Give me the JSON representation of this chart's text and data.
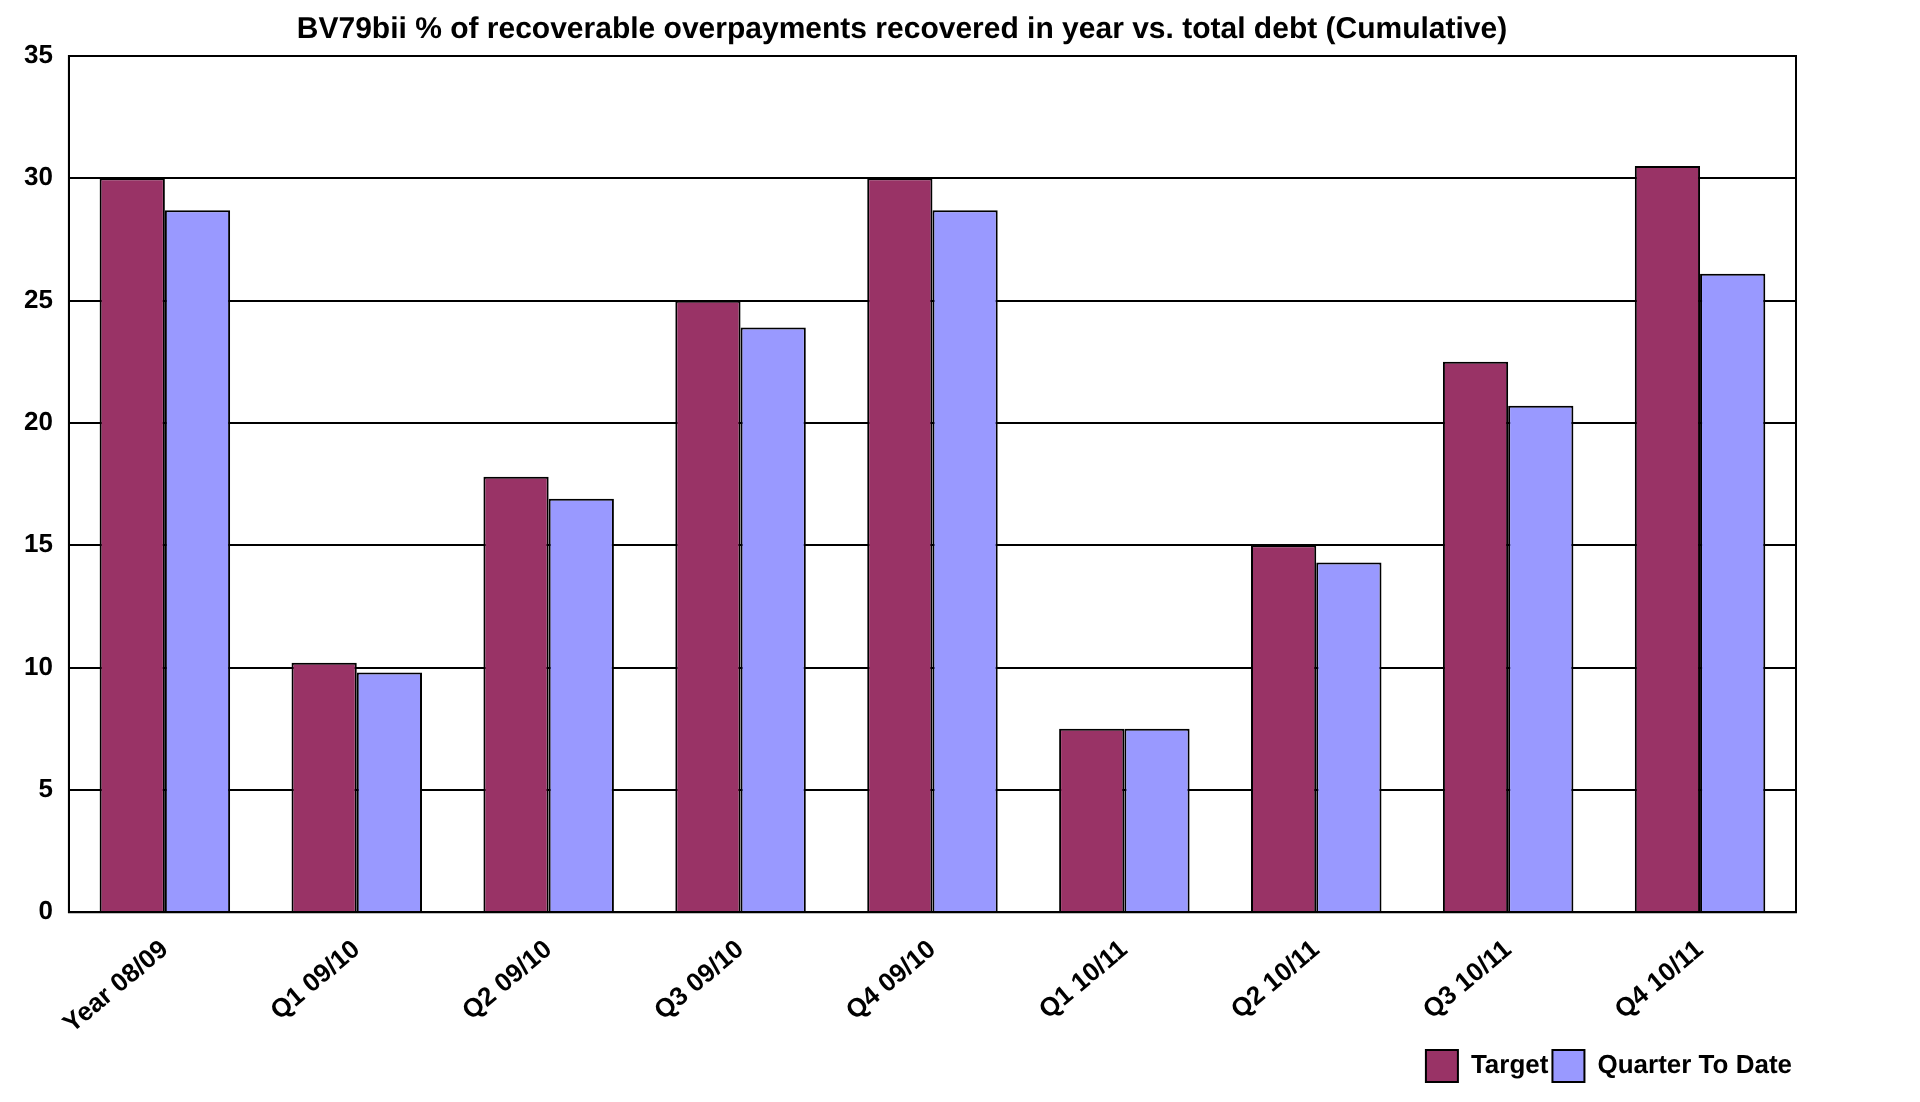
{
  "chart_data": {
    "type": "bar",
    "title": "BV79bii % of recoverable overpayments recovered in year vs. total debt (Cumulative)",
    "categories": [
      "Year 08/09",
      "Q1 09/10",
      "Q2 09/10",
      "Q3 09/10",
      "Q4 09/10",
      "Q1 10/11",
      "Q2 10/11",
      "Q3 10/11",
      "Q4 10/11"
    ],
    "series": [
      {
        "name": "Target",
        "color": "#993366",
        "values": [
          30,
          10.2,
          17.8,
          25,
          30,
          7.5,
          15,
          22.5,
          30.5
        ]
      },
      {
        "name": "Quarter To Date",
        "color": "#9999ff",
        "values": [
          28.7,
          9.8,
          16.9,
          23.9,
          28.7,
          7.5,
          14.3,
          20.7,
          26.1
        ]
      }
    ],
    "ylim": [
      0,
      35
    ],
    "yticks": [
      0,
      5,
      10,
      15,
      20,
      25,
      30,
      35
    ],
    "grid": "y",
    "legend": "bottom right"
  }
}
